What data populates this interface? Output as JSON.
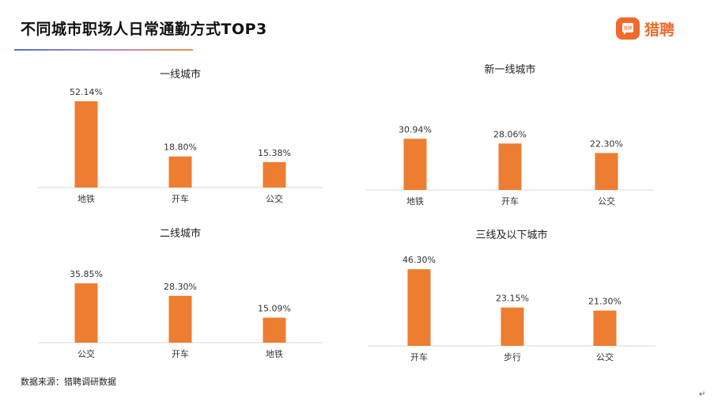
{
  "page": {
    "title": "不同城市职场人日常通勤方式TOP3",
    "source": "数据来源：猎聘调研数据",
    "logo_text": "猎聘",
    "logo_mark_text": "猎聘",
    "return_mark": "↵"
  },
  "colors": {
    "bar": "#ED7D31",
    "axis": "#d9d9d9",
    "brand": "#f06a2b"
  },
  "chart_data": [
    {
      "type": "bar",
      "title": "一线城市",
      "categories": [
        "地铁",
        "开车",
        "公交"
      ],
      "values": [
        52.14,
        18.8,
        15.38
      ],
      "value_labels": [
        "52.14%",
        "18.80%",
        "15.38%"
      ],
      "ylim": [
        0,
        60
      ]
    },
    {
      "type": "bar",
      "title": "新一线城市",
      "categories": [
        "地铁",
        "开车",
        "公交"
      ],
      "values": [
        30.94,
        28.06,
        22.3
      ],
      "value_labels": [
        "30.94%",
        "28.06%",
        "22.30%"
      ],
      "ylim": [
        0,
        60
      ]
    },
    {
      "type": "bar",
      "title": "二线城市",
      "categories": [
        "公交",
        "开车",
        "地铁"
      ],
      "values": [
        35.85,
        28.3,
        15.09
      ],
      "value_labels": [
        "35.85%",
        "28.30%",
        "15.09%"
      ],
      "ylim": [
        0,
        60
      ]
    },
    {
      "type": "bar",
      "title": "三线及以下城市",
      "categories": [
        "开车",
        "步行",
        "公交"
      ],
      "values": [
        46.3,
        23.15,
        21.3
      ],
      "value_labels": [
        "46.30%",
        "23.15%",
        "21.30%"
      ],
      "ylim": [
        0,
        60
      ]
    }
  ]
}
